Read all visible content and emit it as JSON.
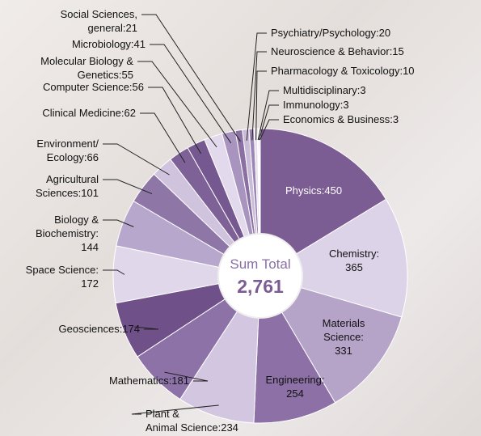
{
  "chart_data": {
    "type": "pie",
    "labels": [
      "Physics:450",
      "Chemistry:\n365",
      "Materials\nScience:\n331",
      "Engineering:\n254",
      "Plant &\nAnimal Science:234",
      "Mathematics:181",
      "Geosciences:174",
      "Space Science:\n172",
      "Biology &\nBiochemistry:\n144",
      "Agricultural\nSciences:101",
      "Environment/\nEcology:66",
      "Clinical Medicine:62",
      "Computer Science:56",
      "Molecular Biology &\nGenetics:55",
      "Microbiology:41",
      "Social Sciences,\ngeneral:21",
      "Psychiatry/Psychology:20",
      "Neuroscience & Behavior:15",
      "Pharmacology & Toxicology:10",
      "Multidisciplinary:3",
      "Immunology:3",
      "Economics & Business:3"
    ],
    "values": [
      450,
      365,
      331,
      254,
      234,
      181,
      174,
      172,
      144,
      101,
      66,
      62,
      56,
      55,
      41,
      21,
      20,
      15,
      10,
      3,
      3,
      3
    ],
    "colors": [
      "#7b5c93",
      "#ddd3e8",
      "#b5a3c8",
      "#8c70a6",
      "#d3c6e0",
      "#8d72a8",
      "#6f5088",
      "#e0d8ea",
      "#b8a7cc",
      "#8e76a6",
      "#cfc3dd",
      "#7d6197",
      "#75588f",
      "#e2d9ec",
      "#a993bf",
      "#8a6fa3",
      "#c9bcd9",
      "#9c86b5",
      "#e6dfee",
      "#7b5c93",
      "#d3c6e0",
      "#8c70a6"
    ],
    "center_label": "Sum Total",
    "total": "2,761"
  }
}
